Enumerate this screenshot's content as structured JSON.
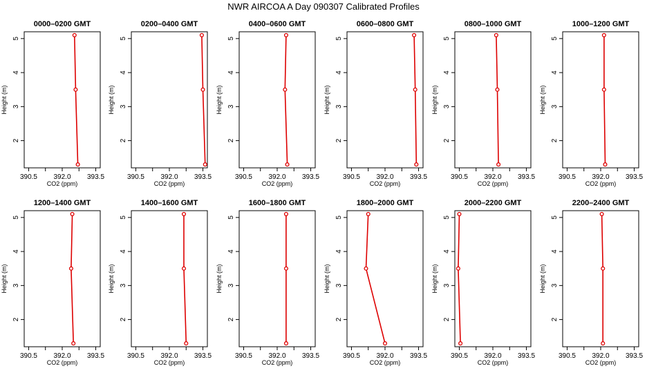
{
  "title": "NWR AIRCOA A  Day 090307  Calibrated Profiles",
  "colors": {
    "series": "#dd0000",
    "axis": "#000000",
    "background": "#ffffff"
  },
  "chart_data": [
    {
      "type": "line",
      "title": "0000–0200 GMT",
      "xlabel": "CO2 (ppm)",
      "ylabel": "Height (m)",
      "xlim": [
        390.3,
        393.7
      ],
      "ylim": [
        1.2,
        5.2
      ],
      "x_ticks": [
        "390.5",
        "392.0",
        "393.5"
      ],
      "y_ticks": [
        "2",
        "3",
        "4",
        "5"
      ],
      "grid": false,
      "points": [
        {
          "x": 392.55,
          "y": 5.1
        },
        {
          "x": 392.6,
          "y": 3.5
        },
        {
          "x": 392.7,
          "y": 1.3
        }
      ]
    },
    {
      "type": "line",
      "title": "0200–0400 GMT",
      "xlabel": "CO2 (ppm)",
      "ylabel": "Height (m)",
      "xlim": [
        390.3,
        393.7
      ],
      "ylim": [
        1.2,
        5.2
      ],
      "x_ticks": [
        "390.5",
        "392.0",
        "393.5"
      ],
      "y_ticks": [
        "2",
        "3",
        "4",
        "5"
      ],
      "grid": false,
      "points": [
        {
          "x": 393.45,
          "y": 5.1
        },
        {
          "x": 393.5,
          "y": 3.5
        },
        {
          "x": 393.6,
          "y": 1.3
        }
      ]
    },
    {
      "type": "line",
      "title": "0400–0600 GMT",
      "xlabel": "CO2 (ppm)",
      "ylabel": "Height (m)",
      "xlim": [
        390.3,
        393.7
      ],
      "ylim": [
        1.2,
        5.2
      ],
      "x_ticks": [
        "390.5",
        "392.0",
        "393.5"
      ],
      "y_ticks": [
        "2",
        "3",
        "4",
        "5"
      ],
      "grid": false,
      "points": [
        {
          "x": 392.4,
          "y": 5.1
        },
        {
          "x": 392.35,
          "y": 3.5
        },
        {
          "x": 392.45,
          "y": 1.3
        }
      ]
    },
    {
      "type": "line",
      "title": "0600–0800 GMT",
      "xlabel": "CO2 (ppm)",
      "ylabel": "Height (m)",
      "xlim": [
        390.3,
        393.7
      ],
      "ylim": [
        1.2,
        5.2
      ],
      "x_ticks": [
        "390.5",
        "392.0",
        "393.5"
      ],
      "y_ticks": [
        "2",
        "3",
        "4",
        "5"
      ],
      "grid": false,
      "points": [
        {
          "x": 393.3,
          "y": 5.1
        },
        {
          "x": 393.35,
          "y": 3.5
        },
        {
          "x": 393.4,
          "y": 1.3
        }
      ]
    },
    {
      "type": "line",
      "title": "0800–1000 GMT",
      "xlabel": "CO2 (ppm)",
      "ylabel": "Height (m)",
      "xlim": [
        390.3,
        393.7
      ],
      "ylim": [
        1.2,
        5.2
      ],
      "x_ticks": [
        "390.5",
        "392.0",
        "393.5"
      ],
      "y_ticks": [
        "2",
        "3",
        "4",
        "5"
      ],
      "grid": false,
      "points": [
        {
          "x": 392.15,
          "y": 5.1
        },
        {
          "x": 392.2,
          "y": 3.5
        },
        {
          "x": 392.25,
          "y": 1.3
        }
      ]
    },
    {
      "type": "line",
      "title": "1000–1200 GMT",
      "xlabel": "CO2 (ppm)",
      "ylabel": "Height (m)",
      "xlim": [
        390.3,
        393.7
      ],
      "ylim": [
        1.2,
        5.2
      ],
      "x_ticks": [
        "390.5",
        "392.0",
        "393.5"
      ],
      "y_ticks": [
        "2",
        "3",
        "4",
        "5"
      ],
      "grid": false,
      "points": [
        {
          "x": 392.15,
          "y": 5.1
        },
        {
          "x": 392.15,
          "y": 3.5
        },
        {
          "x": 392.2,
          "y": 1.3
        }
      ]
    },
    {
      "type": "line",
      "title": "1200–1400 GMT",
      "xlabel": "CO2 (ppm)",
      "ylabel": "Height (m)",
      "xlim": [
        390.3,
        393.7
      ],
      "ylim": [
        1.2,
        5.2
      ],
      "x_ticks": [
        "390.5",
        "392.0",
        "393.5"
      ],
      "y_ticks": [
        "2",
        "3",
        "4",
        "5"
      ],
      "grid": false,
      "points": [
        {
          "x": 392.45,
          "y": 5.1
        },
        {
          "x": 392.4,
          "y": 3.5
        },
        {
          "x": 392.5,
          "y": 1.3
        }
      ]
    },
    {
      "type": "line",
      "title": "1400–1600 GMT",
      "xlabel": "CO2 (ppm)",
      "ylabel": "Height (m)",
      "xlim": [
        390.3,
        393.7
      ],
      "ylim": [
        1.2,
        5.2
      ],
      "x_ticks": [
        "390.5",
        "392.0",
        "393.5"
      ],
      "y_ticks": [
        "2",
        "3",
        "4",
        "5"
      ],
      "grid": false,
      "points": [
        {
          "x": 392.65,
          "y": 5.1
        },
        {
          "x": 392.65,
          "y": 3.5
        },
        {
          "x": 392.75,
          "y": 1.3
        }
      ]
    },
    {
      "type": "line",
      "title": "1600–1800 GMT",
      "xlabel": "CO2 (ppm)",
      "ylabel": "Height (m)",
      "xlim": [
        390.3,
        393.7
      ],
      "ylim": [
        1.2,
        5.2
      ],
      "x_ticks": [
        "390.5",
        "392.0",
        "393.5"
      ],
      "y_ticks": [
        "2",
        "3",
        "4",
        "5"
      ],
      "grid": false,
      "points": [
        {
          "x": 392.4,
          "y": 5.1
        },
        {
          "x": 392.4,
          "y": 3.5
        },
        {
          "x": 392.4,
          "y": 1.3
        }
      ]
    },
    {
      "type": "line",
      "title": "1800–2000 GMT",
      "xlabel": "CO2 (ppm)",
      "ylabel": "Height (m)",
      "xlim": [
        390.3,
        393.7
      ],
      "ylim": [
        1.2,
        5.2
      ],
      "x_ticks": [
        "390.5",
        "392.0",
        "393.5"
      ],
      "y_ticks": [
        "2",
        "3",
        "4",
        "5"
      ],
      "grid": false,
      "points": [
        {
          "x": 391.25,
          "y": 5.1
        },
        {
          "x": 391.15,
          "y": 3.5
        },
        {
          "x": 392.0,
          "y": 1.3
        }
      ]
    },
    {
      "type": "line",
      "title": "2000–2200 GMT",
      "xlabel": "CO2 (ppm)",
      "ylabel": "Height (m)",
      "xlim": [
        390.3,
        393.7
      ],
      "ylim": [
        1.2,
        5.2
      ],
      "x_ticks": [
        "390.5",
        "392.0",
        "393.5"
      ],
      "y_ticks": [
        "2",
        "3",
        "4",
        "5"
      ],
      "grid": false,
      "points": [
        {
          "x": 390.5,
          "y": 5.1
        },
        {
          "x": 390.45,
          "y": 3.5
        },
        {
          "x": 390.55,
          "y": 1.3
        }
      ]
    },
    {
      "type": "line",
      "title": "2200–2400 GMT",
      "xlabel": "CO2 (ppm)",
      "ylabel": "Height (m)",
      "xlim": [
        390.3,
        393.7
      ],
      "ylim": [
        1.2,
        5.2
      ],
      "x_ticks": [
        "390.5",
        "392.0",
        "393.5"
      ],
      "y_ticks": [
        "2",
        "3",
        "4",
        "5"
      ],
      "grid": false,
      "points": [
        {
          "x": 392.05,
          "y": 5.1
        },
        {
          "x": 392.1,
          "y": 3.5
        },
        {
          "x": 392.1,
          "y": 1.3
        }
      ]
    }
  ]
}
